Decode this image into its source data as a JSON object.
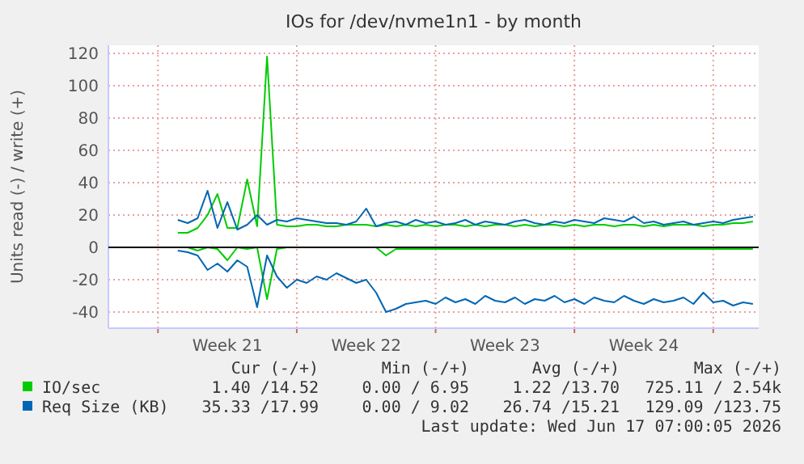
{
  "chart_data": {
    "type": "line",
    "title": "IOs for /dev/nvme1n1 - by month",
    "ylabel": "Units read (-) / write (+)",
    "x": [
      "2026-05-19T00:00",
      "2026-05-19T12:00",
      "2026-05-20T00:00",
      "2026-05-20T12:00",
      "2026-05-21T00:00",
      "2026-05-21T12:00",
      "2026-05-22T00:00",
      "2026-05-22T12:00",
      "2026-05-23T00:00",
      "2026-05-23T12:00",
      "2026-05-24T00:00",
      "2026-05-24T12:00",
      "2026-05-25T00:00",
      "2026-05-25T12:00",
      "2026-05-26T00:00",
      "2026-05-26T12:00",
      "2026-05-27T00:00",
      "2026-05-27T12:00",
      "2026-05-28T00:00",
      "2026-05-28T12:00",
      "2026-05-29T00:00",
      "2026-05-29T12:00",
      "2026-05-30T00:00",
      "2026-05-30T12:00",
      "2026-05-31T00:00",
      "2026-05-31T12:00",
      "2026-06-01T00:00",
      "2026-06-01T12:00",
      "2026-06-02T00:00",
      "2026-06-02T12:00",
      "2026-06-03T00:00",
      "2026-06-03T12:00",
      "2026-06-04T00:00",
      "2026-06-04T12:00",
      "2026-06-05T00:00",
      "2026-06-05T12:00",
      "2026-06-06T00:00",
      "2026-06-06T12:00",
      "2026-06-07T00:00",
      "2026-06-07T12:00",
      "2026-06-08T00:00",
      "2026-06-08T12:00",
      "2026-06-09T00:00",
      "2026-06-09T12:00",
      "2026-06-10T00:00",
      "2026-06-10T12:00",
      "2026-06-11T00:00",
      "2026-06-11T12:00",
      "2026-06-12T00:00",
      "2026-06-12T12:00",
      "2026-06-13T00:00",
      "2026-06-13T12:00",
      "2026-06-14T00:00",
      "2026-06-14T12:00",
      "2026-06-15T00:00",
      "2026-06-15T12:00",
      "2026-06-16T00:00",
      "2026-06-16T12:00",
      "2026-06-17T00:00"
    ],
    "series": [
      {
        "name": "IO/sec",
        "color": "#00cc00",
        "values": [
          9,
          9,
          12,
          20,
          33,
          12,
          12,
          42,
          13,
          118,
          14,
          13,
          13,
          14,
          14,
          13,
          13,
          14,
          14,
          14,
          13,
          14,
          13,
          14,
          13,
          14,
          13,
          14,
          14,
          13,
          14,
          13,
          14,
          14,
          13,
          14,
          13,
          14,
          14,
          13,
          14,
          13,
          14,
          14,
          13,
          14,
          14,
          13,
          14,
          13,
          14,
          14,
          14,
          13,
          14,
          14,
          15,
          15,
          16
        ]
      },
      {
        "name": "Req Size (KB)",
        "color": "#0066b3",
        "values": [
          17,
          15,
          18,
          35,
          12,
          28,
          11,
          14,
          20,
          14,
          17,
          16,
          18,
          17,
          16,
          15,
          15,
          14,
          16,
          24,
          13,
          15,
          16,
          14,
          17,
          15,
          16,
          14,
          15,
          17,
          14,
          16,
          15,
          14,
          16,
          17,
          15,
          14,
          16,
          15,
          17,
          16,
          15,
          18,
          17,
          16,
          19,
          15,
          16,
          14,
          15,
          16,
          14,
          15,
          16,
          15,
          17,
          18,
          19
        ]
      },
      {
        "color": "#00cc00",
        "values": [
          0,
          0,
          -2,
          0,
          -1,
          -8,
          0,
          -1,
          0,
          -32,
          -1,
          0,
          0,
          0,
          0,
          0,
          0,
          0,
          0,
          0,
          0,
          -5,
          -1,
          -1,
          -1,
          -1,
          -1,
          -1,
          -1,
          -1,
          -1,
          -1,
          -1,
          -1,
          -1,
          -1,
          -1,
          -1,
          -1,
          -1,
          -1,
          -1,
          -1,
          -1,
          -1,
          -1,
          -1,
          -1,
          -1,
          -1,
          -1,
          -1,
          -1,
          -1,
          -1,
          -1,
          -1,
          -1,
          -1
        ]
      },
      {
        "color": "#0066b3",
        "values": [
          -2,
          -3,
          -5,
          -14,
          -10,
          -15,
          -8,
          -12,
          -37,
          -5,
          -18,
          -25,
          -20,
          -22,
          -18,
          -20,
          -16,
          -19,
          -22,
          -20,
          -28,
          -40,
          -38,
          -35,
          -34,
          -33,
          -35,
          -31,
          -34,
          -32,
          -35,
          -30,
          -33,
          -34,
          -31,
          -35,
          -32,
          -33,
          -30,
          -34,
          -32,
          -35,
          -31,
          -33,
          -34,
          -30,
          -33,
          -35,
          -32,
          -34,
          -33,
          -31,
          -35,
          -28,
          -34,
          -33,
          -36,
          -34,
          -35
        ]
      }
    ],
    "xlim": [
      "2026-05-15T12:00",
      "2026-06-17T07:00"
    ],
    "xticks": [
      {
        "value": "2026-05-18T00:00",
        "label": null
      },
      {
        "value": "2026-05-21T12:00",
        "label": "Week 21"
      },
      {
        "value": "2026-05-25T00:00",
        "label": null
      },
      {
        "value": "2026-05-28T12:00",
        "label": "Week 22"
      },
      {
        "value": "2026-06-01T00:00",
        "label": null
      },
      {
        "value": "2026-06-04T12:00",
        "label": "Week 23"
      },
      {
        "value": "2026-06-08T00:00",
        "label": null
      },
      {
        "value": "2026-06-11T12:00",
        "label": "Week 24"
      },
      {
        "value": "2026-06-15T00:00",
        "label": null
      }
    ],
    "ylim": [
      -50,
      125
    ],
    "yticks": [
      -40,
      -20,
      0,
      20,
      40,
      60,
      80,
      100,
      120
    ],
    "grid": true,
    "legend": "bottom",
    "ref_lines": [
      {
        "axis": "y",
        "value": 0,
        "color": "#000000"
      }
    ],
    "annotations": [
      "Cur (-/+)",
      "Min (-/+)",
      "Avg (-/+)",
      "Max (-/+)",
      "1.40 /14.52",
      "0.00 / 6.95",
      "1.22 /13.70",
      "725.11 / 2.54k",
      "35.33 /17.99",
      "0.00 / 9.02",
      "26.74 /15.21",
      "129.09 /123.75",
      "Last update: Wed Jun 17 07:00:05 2026"
    ]
  }
}
